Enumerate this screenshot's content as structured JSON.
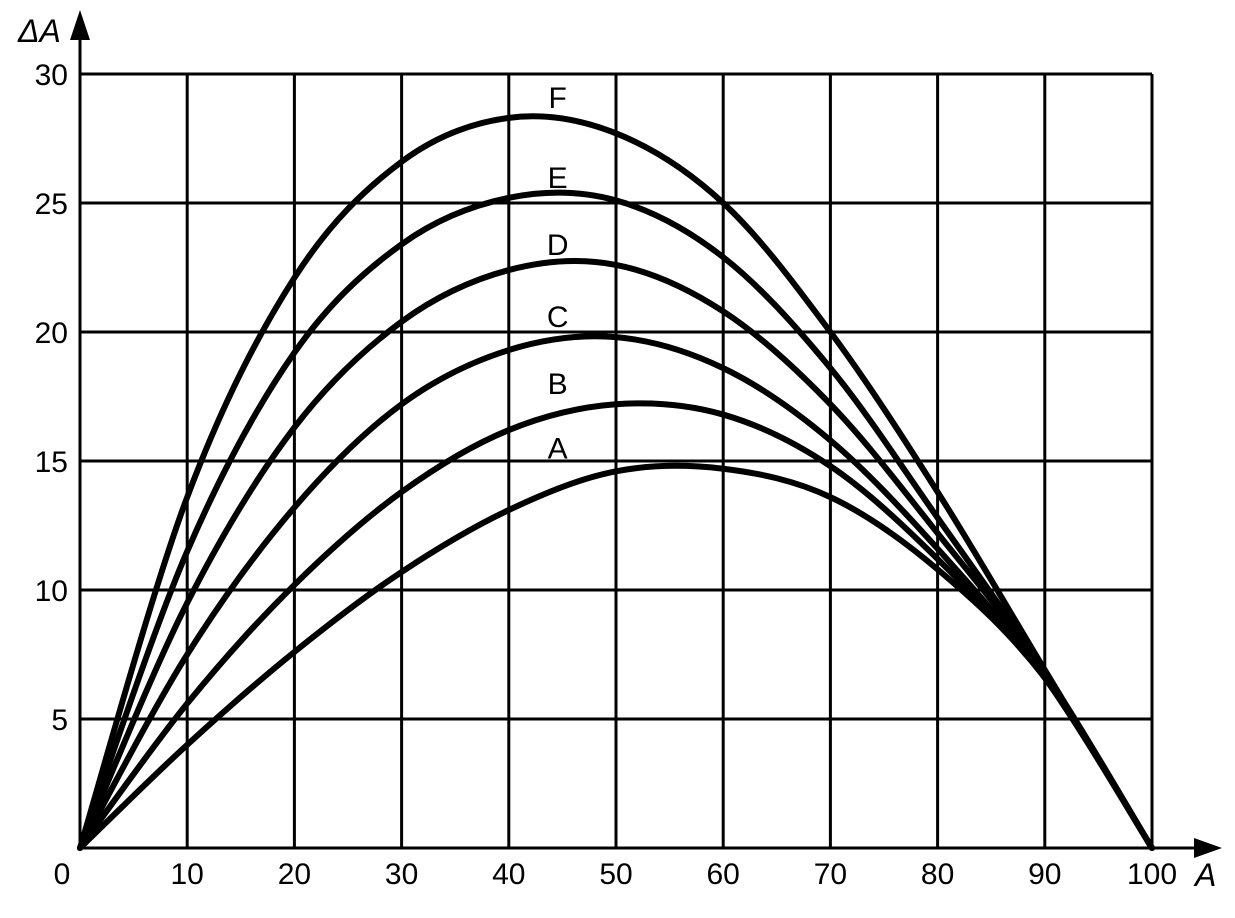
{
  "chart_data": {
    "type": "line",
    "xlabel": "A",
    "ylabel": "ΔA",
    "xlim": [
      0,
      100
    ],
    "ylim": [
      0,
      30
    ],
    "x_ticks": [
      "0",
      "10",
      "20",
      "30",
      "40",
      "50",
      "60",
      "70",
      "80",
      "90",
      "100"
    ],
    "y_ticks": [
      "5",
      "10",
      "15",
      "20",
      "25",
      "30"
    ],
    "grid": true,
    "series": [
      {
        "name": "A",
        "peak_x": 55,
        "peak_y": 14.8,
        "x": [
          0,
          10,
          20,
          30,
          40,
          50,
          60,
          70,
          80,
          90,
          100
        ],
        "y": [
          0,
          4.0,
          7.6,
          10.7,
          13.1,
          14.6,
          14.7,
          13.6,
          10.8,
          6.6,
          0
        ]
      },
      {
        "name": "B",
        "peak_x": 51,
        "peak_y": 17.2,
        "x": [
          0,
          10,
          20,
          30,
          40,
          50,
          60,
          70,
          80,
          90,
          100
        ],
        "y": [
          0,
          5.6,
          10.2,
          13.8,
          16.2,
          17.2,
          16.8,
          14.8,
          11.2,
          6.6,
          0
        ]
      },
      {
        "name": "C",
        "peak_x": 48,
        "peak_y": 19.8,
        "x": [
          0,
          10,
          20,
          30,
          40,
          50,
          60,
          70,
          80,
          90,
          100
        ],
        "y": [
          0,
          7.5,
          13.2,
          17.2,
          19.3,
          19.8,
          18.6,
          15.8,
          11.6,
          6.6,
          0
        ]
      },
      {
        "name": "D",
        "peak_x": 47,
        "peak_y": 22.8,
        "x": [
          0,
          10,
          20,
          30,
          40,
          50,
          60,
          70,
          80,
          90,
          100
        ],
        "y": [
          0,
          9.5,
          16.3,
          20.4,
          22.4,
          22.6,
          20.8,
          17.2,
          12.2,
          6.8,
          0
        ]
      },
      {
        "name": "E",
        "peak_x": 44,
        "peak_y": 25.4,
        "x": [
          0,
          10,
          20,
          30,
          40,
          50,
          60,
          70,
          80,
          90,
          100
        ],
        "y": [
          0,
          11.5,
          19.2,
          23.4,
          25.2,
          25.1,
          22.9,
          18.6,
          12.8,
          6.8,
          0
        ]
      },
      {
        "name": "F",
        "peak_x": 42,
        "peak_y": 28.4,
        "x": [
          0,
          10,
          20,
          30,
          40,
          50,
          60,
          70,
          80,
          90,
          100
        ],
        "y": [
          0,
          13.6,
          22.1,
          26.6,
          28.3,
          27.7,
          25.0,
          20.0,
          13.8,
          6.9,
          0
        ]
      }
    ]
  }
}
